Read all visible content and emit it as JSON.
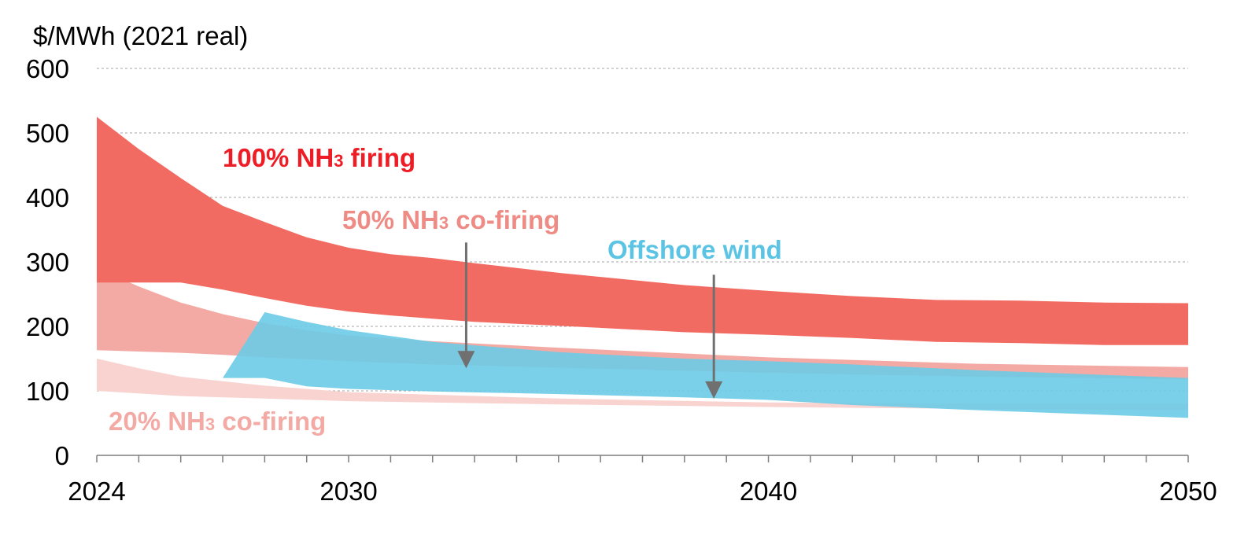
{
  "chart_data": {
    "type": "area",
    "title": "",
    "ylabel": "$/MWh (2021 real)",
    "xlabel": "",
    "xlim": [
      2024,
      2050
    ],
    "ylim": [
      0,
      600
    ],
    "x_ticks": [
      "2024",
      "2030",
      "2040",
      "2050"
    ],
    "y_ticks": [
      "0",
      "100",
      "200",
      "300",
      "400",
      "500",
      "600"
    ],
    "grid": "horizontal dashed",
    "series": [
      {
        "name": "20% NH3 co-firing",
        "label_main": "20% NH",
        "label_sub": "3",
        "label_rest": " co-firing",
        "color": "#f8d3d0",
        "label_color": "#f4aaa4",
        "x": [
          2024,
          2025,
          2026,
          2028,
          2030,
          2035,
          2040,
          2045,
          2050
        ],
        "upper": [
          150,
          135,
          122,
          108,
          98,
          88,
          82,
          80,
          80
        ],
        "lower": [
          100,
          96,
          92,
          88,
          84,
          79,
          75,
          72,
          70
        ]
      },
      {
        "name": "50% NH3 co-firing",
        "label_main": "50% NH",
        "label_sub": "3",
        "label_rest": " co-firing",
        "color": "#f4aaa4",
        "label_color": "#ef8b85",
        "x": [
          2024,
          2025,
          2026,
          2027,
          2028,
          2029,
          2030,
          2032,
          2035,
          2040,
          2045,
          2050
        ],
        "upper": [
          290,
          262,
          237,
          219,
          205,
          194,
          186,
          177,
          167,
          152,
          142,
          137
        ],
        "lower": [
          163,
          161,
          159,
          156,
          152,
          149,
          146,
          141,
          136,
          128,
          122,
          118
        ]
      },
      {
        "name": "Offshore wind",
        "label_main": "Offshore wind",
        "label_sub": "",
        "label_rest": "",
        "color": "#6bcbe6",
        "label_color": "#5bc4e4",
        "x": [
          2027,
          2028,
          2029,
          2030,
          2032,
          2035,
          2038,
          2040,
          2042,
          2045,
          2050
        ],
        "upper": [
          120,
          222,
          207,
          194,
          176,
          160,
          150,
          146,
          141,
          132,
          120
        ],
        "lower": [
          120,
          120,
          107,
          103,
          99,
          95,
          90,
          86,
          78,
          70,
          58
        ]
      },
      {
        "name": "100% NH3 firing",
        "label_main": "100% NH",
        "label_sub": "3",
        "label_rest": " firing",
        "color": "#f26b62",
        "label_color": "#ee1c25",
        "x": [
          2024,
          2025,
          2026,
          2027,
          2028,
          2029,
          2030,
          2031,
          2032,
          2033,
          2035,
          2038,
          2040,
          2042,
          2044,
          2046,
          2048,
          2050
        ],
        "upper": [
          525,
          475,
          430,
          387,
          362,
          338,
          322,
          312,
          306,
          298,
          283,
          264,
          255,
          247,
          241,
          240,
          237,
          236
        ],
        "lower": [
          268,
          268,
          268,
          257,
          244,
          232,
          223,
          217,
          212,
          207,
          201,
          191,
          187,
          182,
          176,
          174,
          171,
          171
        ]
      }
    ],
    "annotations": [
      {
        "type": "arrow",
        "x": 2032.8,
        "from": 330,
        "to": 135
      },
      {
        "type": "arrow",
        "x": 2038.7,
        "from": 280,
        "to": 88
      }
    ]
  }
}
